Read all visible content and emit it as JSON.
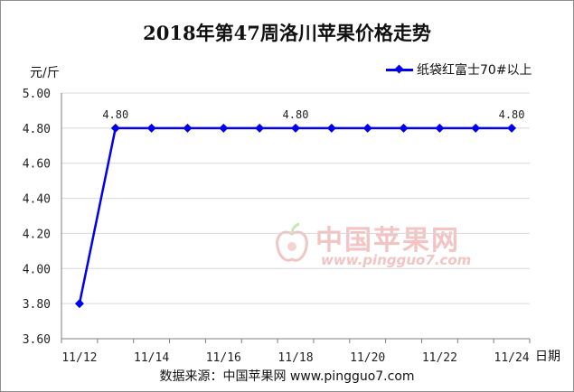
{
  "title": "2018年第47周洛川苹果价格走势",
  "y_unit": "元/斤",
  "x_unit": "日期",
  "source_text": "数据来源：中国苹果网  www.pingguo7.com",
  "watermark": {
    "cn": "中国苹果网",
    "url": "www.pingguo7.com"
  },
  "colors": {
    "series": "#0000ee",
    "grid": "#d8d8d8",
    "axis": "#7f7f7f"
  },
  "chart_data": {
    "type": "line",
    "title": "2018年第47周洛川苹果价格走势",
    "xlabel": "日期",
    "ylabel": "元/斤",
    "ylim": [
      3.6,
      5.0
    ],
    "yticks": [
      "3.60",
      "3.80",
      "4.00",
      "4.20",
      "4.40",
      "4.60",
      "4.80",
      "5.00"
    ],
    "x": [
      "11/12",
      "11/13",
      "11/14",
      "11/15",
      "11/16",
      "11/17",
      "11/18",
      "11/19",
      "11/20",
      "11/21",
      "11/22",
      "11/23",
      "11/24"
    ],
    "xtick_labels": [
      "11/12",
      "11/14",
      "11/16",
      "11/18",
      "11/20",
      "11/22",
      "11/24"
    ],
    "series": [
      {
        "name": "纸袋红富士70#以上",
        "values": [
          3.8,
          4.8,
          4.8,
          4.8,
          4.8,
          4.8,
          4.8,
          4.8,
          4.8,
          4.8,
          4.8,
          4.8,
          4.8
        ]
      }
    ],
    "data_labels": [
      {
        "x": "11/13",
        "text": "4.80"
      },
      {
        "x": "11/18",
        "text": "4.80"
      },
      {
        "x": "11/24",
        "text": "4.80"
      }
    ],
    "grid": true,
    "legend_position": "top-right"
  }
}
